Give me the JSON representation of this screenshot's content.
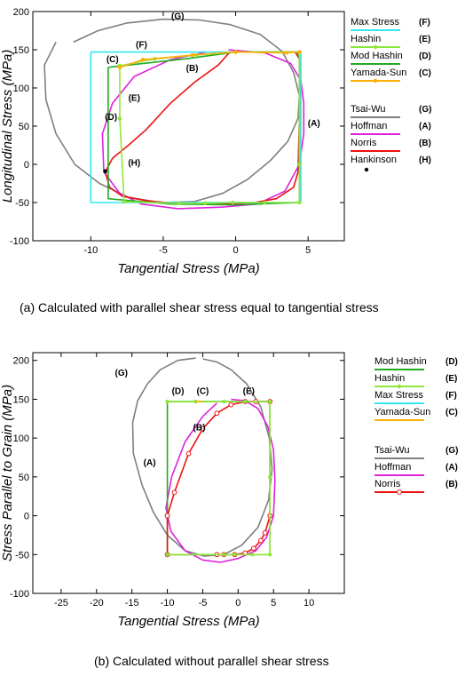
{
  "captions": {
    "a": "(a) Calculated with parallel shear stress equal to tangential stress",
    "b": "(b) Calculated without parallel shear stress"
  },
  "colors": {
    "max_stress": "#33e6f2",
    "hashin": "#8ee63c",
    "mod_hashin": "#22aa22",
    "yamada_sun": "#ffae00",
    "tsai_wu": "#7f7f7f",
    "hoffman": "#dd22dd",
    "norris": "#ee1111",
    "hankinson": "#000000"
  },
  "chart_data": [
    {
      "type": "line",
      "title": "",
      "xlabel": "Tangential Stress (MPa)",
      "ylabel": "Longitudinal Stress (MPa)",
      "xlim": [
        -14,
        7.5
      ],
      "ylim": [
        -100,
        200
      ],
      "xticks": [
        -10,
        -5,
        0,
        5
      ],
      "yticks": [
        -100,
        -50,
        0,
        50,
        100,
        150,
        200
      ],
      "grid": false,
      "legend": {
        "placement": "right",
        "entries": [
          {
            "name": "Max Stress",
            "tag": "(F)",
            "color": "#33e6f2",
            "marker": "none"
          },
          {
            "name": "Hashin",
            "tag": "(E)",
            "color": "#8ee63c",
            "marker": "dot"
          },
          {
            "name": "Mod Hashin",
            "tag": "(D)",
            "color": "#22aa22",
            "marker": "none"
          },
          {
            "name": "Yamada-Sun",
            "tag": "(C)",
            "color": "#ffae00",
            "marker": "dot"
          },
          {
            "name": "Tsai-Wu",
            "tag": "(G)",
            "color": "#7f7f7f",
            "marker": "none"
          },
          {
            "name": "Hoffman",
            "tag": "(A)",
            "color": "#dd22dd",
            "marker": "none"
          },
          {
            "name": "Norris",
            "tag": "(B)",
            "color": "#ee1111",
            "marker": "none"
          },
          {
            "name": "Hankinson",
            "tag": "(H)",
            "color": "#000000",
            "marker": "point"
          }
        ]
      },
      "annotations": [
        {
          "text": "(G)",
          "x": -4,
          "y": 190
        },
        {
          "text": "(F)",
          "x": -6.5,
          "y": 153
        },
        {
          "text": "(C)",
          "x": -8.5,
          "y": 134
        },
        {
          "text": "(B)",
          "x": -3,
          "y": 122
        },
        {
          "text": "(E)",
          "x": -7,
          "y": 83
        },
        {
          "text": "(D)",
          "x": -8.6,
          "y": 58
        },
        {
          "text": "(A)",
          "x": 5.4,
          "y": 50
        },
        {
          "text": "(H)",
          "x": -7,
          "y": -2
        }
      ],
      "series": [
        {
          "name": "Tsai-Wu",
          "color": "#7f7f7f",
          "marker": "none",
          "x": [
            -11.2,
            -9.5,
            -7.5,
            -5,
            -2.5,
            -0.4,
            1.7,
            3.2,
            4.0,
            4.4,
            4.3,
            3.6,
            2.4,
            0.8,
            -0.9,
            -2.9,
            -5.2,
            -7.4,
            -9.4,
            -11.1,
            -12.4,
            -13.1,
            -13.2,
            -12.4
          ],
          "y": [
            160,
            175,
            185,
            190,
            189,
            183,
            170,
            148,
            120,
            90,
            60,
            30,
            5,
            -20,
            -38,
            -49,
            -50,
            -43,
            -25,
            0,
            40,
            85,
            130,
            160
          ]
        },
        {
          "name": "Hoffman",
          "color": "#dd22dd",
          "marker": "none",
          "x": [
            -0.5,
            2.0,
            3.8,
            4.5,
            4.7,
            4.7,
            4.4,
            3.4,
            1.5,
            -1.0,
            -4.0,
            -6.5,
            -8.0,
            -9.1,
            -9.2,
            -8.5,
            -7.0,
            -4.5,
            -2.0
          ],
          "y": [
            150,
            146,
            132,
            110,
            80,
            40,
            0,
            -35,
            -52,
            -56,
            -58,
            -52,
            -38,
            -10,
            40,
            80,
            115,
            137,
            147
          ]
        },
        {
          "name": "Norris",
          "color": "#ee1111",
          "marker": "none",
          "x": [
            -0.4,
            1.3,
            2.5,
            4.1,
            4.4,
            4.4,
            4.3,
            4.0,
            2.8,
            1.3,
            -1.0,
            -3.5,
            -6.0,
            -7.8,
            -8.7,
            -9.0,
            -8.5,
            -7.4,
            -6.2,
            -4.5,
            -2.8,
            -1.2,
            -0.4
          ],
          "y": [
            147,
            147,
            147,
            147,
            138,
            60,
            -10,
            -30,
            -45,
            -50,
            -52,
            -52,
            -48,
            -42,
            -30,
            -10,
            8,
            25,
            45,
            80,
            108,
            130,
            147
          ]
        },
        {
          "name": "Max Stress",
          "color": "#33e6f2",
          "marker": "none",
          "x": [
            -10,
            4.5,
            4.5,
            -10,
            -10
          ],
          "y": [
            147,
            147,
            -50,
            -50,
            147
          ]
        },
        {
          "name": "Mod Hashin",
          "color": "#22aa22",
          "marker": "none",
          "x": [
            -8.8,
            -3.5,
            0,
            4.2,
            4.4,
            4.4,
            0,
            -4.5,
            -8.8,
            -8.8
          ],
          "y": [
            127,
            138,
            147,
            147,
            140,
            -50,
            -53,
            -52,
            -45,
            127
          ]
        },
        {
          "name": "Hashin",
          "color": "#8ee63c",
          "marker": "dot",
          "x": [
            -8.0,
            -5.6,
            -2.7,
            0,
            4.4,
            4.4,
            4.4,
            2.0,
            -0.2,
            -2.1,
            -3.9,
            -7.7,
            -8.0,
            -8.0
          ],
          "y": [
            129,
            138,
            143,
            147,
            147,
            0,
            -50,
            -50,
            -50,
            -51,
            -51,
            -49,
            60,
            129
          ]
        },
        {
          "name": "Yamada-Sun",
          "color": "#ffae00",
          "marker": "dot",
          "x": [
            -8.0,
            -6.4,
            -3.0,
            0,
            3.5,
            4.4
          ],
          "y": [
            127,
            137,
            143,
            147,
            146,
            147
          ]
        },
        {
          "name": "Hankinson",
          "color": "#000000",
          "marker": "point",
          "x": [
            -9.0
          ],
          "y": [
            -9.0
          ]
        }
      ]
    },
    {
      "type": "line",
      "title": "",
      "xlabel": "Tangential Stress (MPa)",
      "ylabel": "Stress Parallel to Grain  (MPa)",
      "xlim": [
        -29,
        15
      ],
      "ylim": [
        -100,
        210
      ],
      "xticks": [
        -25,
        -20,
        -15,
        -10,
        -5,
        0,
        5,
        10
      ],
      "yticks": [
        -100,
        -50,
        0,
        50,
        100,
        150,
        200
      ],
      "grid": false,
      "legend": {
        "placement": "right",
        "entries": [
          {
            "name": "Mod Hashin",
            "tag": "(D)",
            "color": "#22aa22",
            "marker": "none"
          },
          {
            "name": "Hashin",
            "tag": "(E)",
            "color": "#8ee63c",
            "marker": "dot"
          },
          {
            "name": "Max Stress",
            "tag": "(F)",
            "color": "#33e6f2",
            "marker": "none"
          },
          {
            "name": "Yamada-Sun",
            "tag": "(C)",
            "color": "#ffae00",
            "marker": "none"
          },
          {
            "name": "Tsai-Wu",
            "tag": "(G)",
            "color": "#7f7f7f",
            "marker": "none"
          },
          {
            "name": "Hoffman",
            "tag": "(A)",
            "color": "#dd22dd",
            "marker": "none"
          },
          {
            "name": "Norris",
            "tag": "(B)",
            "color": "#ee1111",
            "marker": "circle"
          }
        ]
      },
      "annotations": [
        {
          "text": "(G)",
          "x": -16.5,
          "y": 180
        },
        {
          "text": "(D)",
          "x": -8.5,
          "y": 157
        },
        {
          "text": "(C)",
          "x": -5,
          "y": 157
        },
        {
          "text": "(E)",
          "x": 1.5,
          "y": 157
        },
        {
          "text": "(B)",
          "x": -5.5,
          "y": 110
        },
        {
          "text": "(A)",
          "x": -12.5,
          "y": 65
        }
      ],
      "series": [
        {
          "name": "Tsai-Wu",
          "color": "#7f7f7f",
          "marker": "none",
          "x": [
            -5,
            -3,
            -1,
            1.2,
            3.2,
            4.4,
            4.8,
            4.3,
            2.8,
            0.5,
            -2,
            -4.8,
            -7.5,
            -10,
            -12,
            -13.6,
            -14.8,
            -14.9,
            -14.2,
            -12.8,
            -11,
            -8.5,
            -6
          ],
          "y": [
            202,
            198,
            188,
            170,
            140,
            100,
            60,
            20,
            -15,
            -38,
            -50,
            -52,
            -45,
            -25,
            5,
            40,
            80,
            120,
            148,
            170,
            188,
            200,
            203
          ]
        },
        {
          "name": "Hoffman",
          "color": "#dd22dd",
          "marker": "none",
          "x": [
            -1,
            1,
            2.8,
            4.2,
            5.0,
            5.2,
            5.0,
            4.0,
            2.5,
            0,
            -2.5,
            -5,
            -7.5,
            -9.5,
            -10.2,
            -9.4,
            -7.5,
            -5,
            -3
          ],
          "y": [
            150,
            148,
            138,
            115,
            85,
            45,
            0,
            -28,
            -45,
            -55,
            -60,
            -57,
            -45,
            -20,
            10,
            50,
            95,
            128,
            145
          ]
        },
        {
          "name": "Mod Hashin",
          "color": "#22aa22",
          "marker": "none",
          "x": [
            -10,
            4.5,
            4.5,
            -10,
            -10
          ],
          "y": [
            147,
            147,
            -50,
            -50,
            147
          ]
        },
        {
          "name": "Norris",
          "color": "#ee1111",
          "marker": "circle",
          "x": [
            -10,
            -9,
            -7,
            -5,
            -3,
            -1,
            1,
            2.5,
            4.5,
            4.5,
            3.8,
            3.2,
            2.2,
            1,
            -0.5,
            -2,
            -3,
            -10,
            -10
          ],
          "y": [
            0,
            30,
            80,
            112,
            132,
            143,
            147,
            147,
            147,
            0,
            -22,
            -32,
            -42,
            -48,
            -50,
            -50,
            -50,
            -50,
            0
          ]
        },
        {
          "name": "Hashin",
          "color": "#8ee63c",
          "marker": "dot",
          "x": [
            -10,
            -6,
            -2,
            1,
            4.5,
            4.5,
            4.5,
            2,
            -0.5,
            -2,
            -10
          ],
          "y": [
            147,
            147,
            147,
            147,
            147,
            50,
            -50,
            -50,
            -50,
            -50,
            -50
          ]
        },
        {
          "name": "Yamada-Sun",
          "color": "#ffae00",
          "marker": "none",
          "x": [
            -6,
            -5
          ],
          "y": [
            147,
            147
          ]
        }
      ]
    }
  ]
}
